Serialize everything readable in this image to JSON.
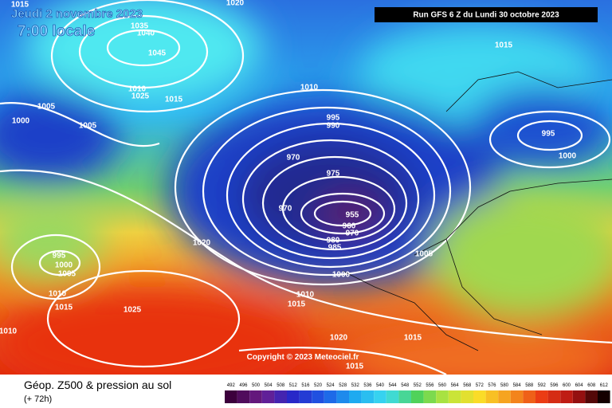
{
  "header": {
    "date": "Jeudi 2 novembre 2023",
    "time": "7:00 locale",
    "run": "Run GFS 6 Z du Lundi 30 octobre 2023"
  },
  "isobars": [
    1015,
    1020,
    1035,
    1040,
    1045,
    1015,
    1010,
    1025,
    1015,
    1010,
    1005,
    1000,
    1005,
    995,
    990,
    995,
    1000,
    970,
    975,
    970,
    955,
    960,
    970,
    980,
    985,
    1005,
    1020,
    995,
    1000,
    1005,
    1000,
    1010,
    1010,
    1015,
    1015,
    1025,
    1010,
    1020,
    1015,
    1015
  ],
  "copyright": "Copyright © 2023 Meteociel.fr",
  "footer": {
    "title": "Géop. Z500 & pression au sol",
    "lead": "(+ 72h)"
  },
  "scale": [
    492,
    496,
    500,
    504,
    508,
    512,
    516,
    520,
    524,
    528,
    532,
    536,
    540,
    544,
    548,
    552,
    556,
    560,
    564,
    568,
    572,
    576,
    580,
    584,
    588,
    592,
    596,
    600,
    604,
    608,
    612
  ]
}
